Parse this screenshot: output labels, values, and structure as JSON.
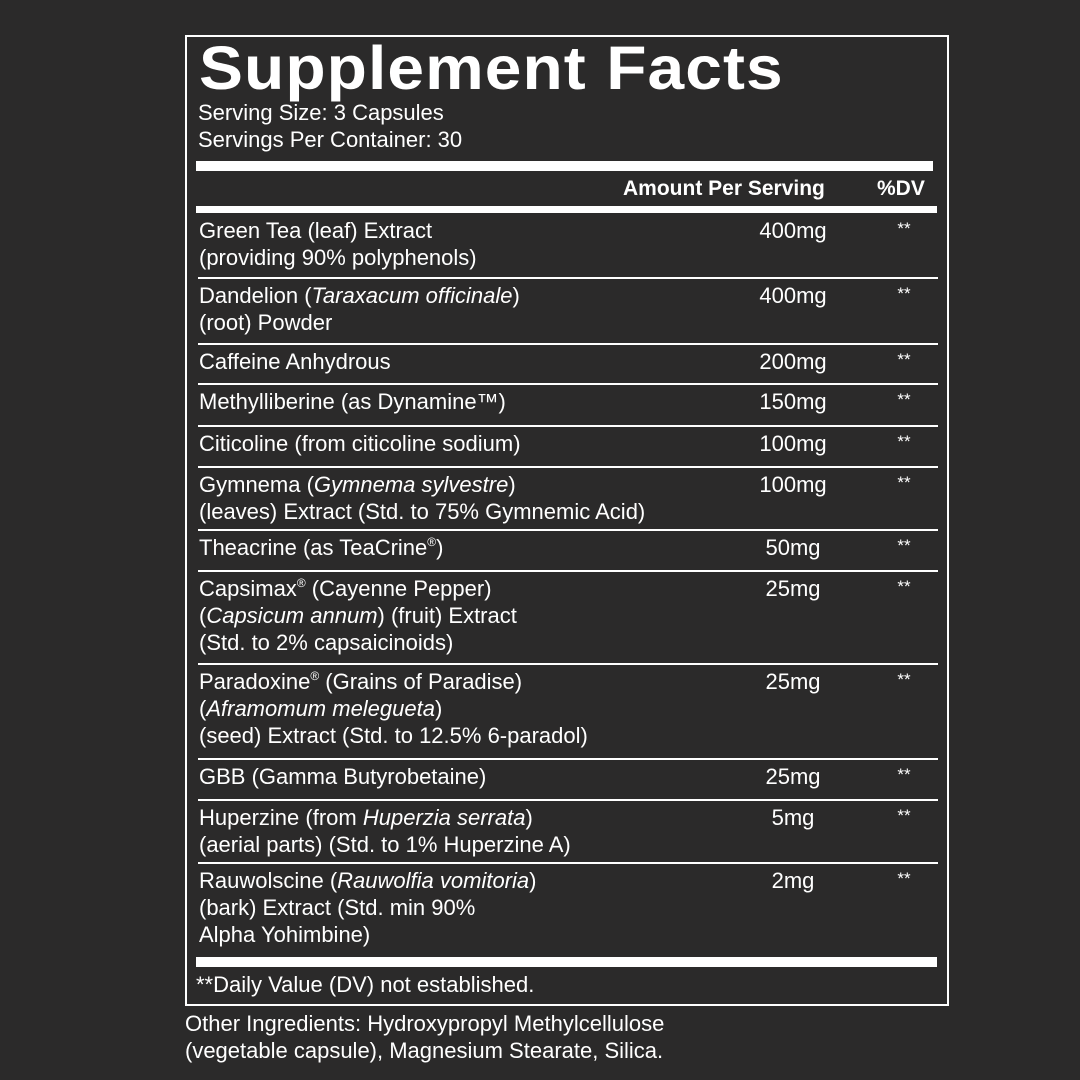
{
  "title": "Supplement Facts",
  "serving_size": "Serving Size: 3 Capsules",
  "servings_per_container": "Servings Per Container: 30",
  "header": {
    "amount": "Amount Per Serving",
    "dv": "%DV"
  },
  "rows": [
    {
      "lines": [
        [
          {
            "t": "Green Tea (leaf) Extract"
          }
        ],
        [
          {
            "t": "(providing 90% polyphenols)"
          }
        ]
      ],
      "amount": "400mg",
      "dv": "**"
    },
    {
      "lines": [
        [
          {
            "t": "Dandelion ("
          },
          {
            "t": "Taraxacum officinale",
            "s": "i"
          },
          {
            "t": ")"
          }
        ],
        [
          {
            "t": "(root) Powder"
          }
        ]
      ],
      "amount": "400mg",
      "dv": "**"
    },
    {
      "lines": [
        [
          {
            "t": "Caffeine Anhydrous"
          }
        ]
      ],
      "amount": "200mg",
      "dv": "**"
    },
    {
      "lines": [
        [
          {
            "t": "Methylliberine (as Dynamine™)"
          }
        ]
      ],
      "amount": "150mg",
      "dv": "**"
    },
    {
      "lines": [
        [
          {
            "t": "Citicoline (from citicoline sodium)"
          }
        ]
      ],
      "amount": "100mg",
      "dv": "**"
    },
    {
      "lines": [
        [
          {
            "t": "Gymnema ("
          },
          {
            "t": "Gymnema sylvestre",
            "s": "i"
          },
          {
            "t": ")"
          }
        ],
        [
          {
            "t": "(leaves) Extract (Std. to 75% Gymnemic Acid)"
          }
        ]
      ],
      "amount": "100mg",
      "dv": "**"
    },
    {
      "lines": [
        [
          {
            "t": "Theacrine (as TeaCrine"
          },
          {
            "t": "®",
            "s": "sup"
          },
          {
            "t": ")"
          }
        ]
      ],
      "amount": "50mg",
      "dv": "**"
    },
    {
      "lines": [
        [
          {
            "t": "Capsimax"
          },
          {
            "t": "®",
            "s": "sup"
          },
          {
            "t": " (Cayenne Pepper)"
          }
        ],
        [
          {
            "t": "("
          },
          {
            "t": "Capsicum annum",
            "s": "i"
          },
          {
            "t": ") (fruit) Extract"
          }
        ],
        [
          {
            "t": "(Std. to 2% capsaicinoids)"
          }
        ]
      ],
      "amount": "25mg",
      "dv": "**"
    },
    {
      "lines": [
        [
          {
            "t": "Paradoxine"
          },
          {
            "t": "®",
            "s": "sup"
          },
          {
            "t": " (Grains of Paradise)"
          }
        ],
        [
          {
            "t": "("
          },
          {
            "t": "Aframomum melegueta",
            "s": "i"
          },
          {
            "t": ")"
          }
        ],
        [
          {
            "t": "(seed) Extract (Std. to 12.5% 6-paradol)"
          }
        ]
      ],
      "amount": "25mg",
      "dv": "**"
    },
    {
      "lines": [
        [
          {
            "t": "GBB (Gamma Butyrobetaine)"
          }
        ]
      ],
      "amount": "25mg",
      "dv": "**"
    },
    {
      "lines": [
        [
          {
            "t": "Huperzine (from "
          },
          {
            "t": "Huperzia serrata",
            "s": "i"
          },
          {
            "t": ")"
          }
        ],
        [
          {
            "t": "(aerial parts) (Std. to 1% Huperzine A)"
          }
        ]
      ],
      "amount": "5mg",
      "dv": "**"
    },
    {
      "lines": [
        [
          {
            "t": "Rauwolscine ("
          },
          {
            "t": "Rauwolfia vomitoria",
            "s": "i"
          },
          {
            "t": ")"
          }
        ],
        [
          {
            "t": "(bark) Extract (Std. min 90%"
          }
        ],
        [
          {
            "t": "Alpha Yohimbine)"
          }
        ]
      ],
      "amount": "2mg",
      "dv": "**"
    }
  ],
  "footnote": "**Daily Value (DV) not established.",
  "other_ingredients": [
    "Other Ingredients: Hydroxypropyl Methylcellulose",
    "(vegetable capsule), Magnesium Stearate, Silica."
  ]
}
